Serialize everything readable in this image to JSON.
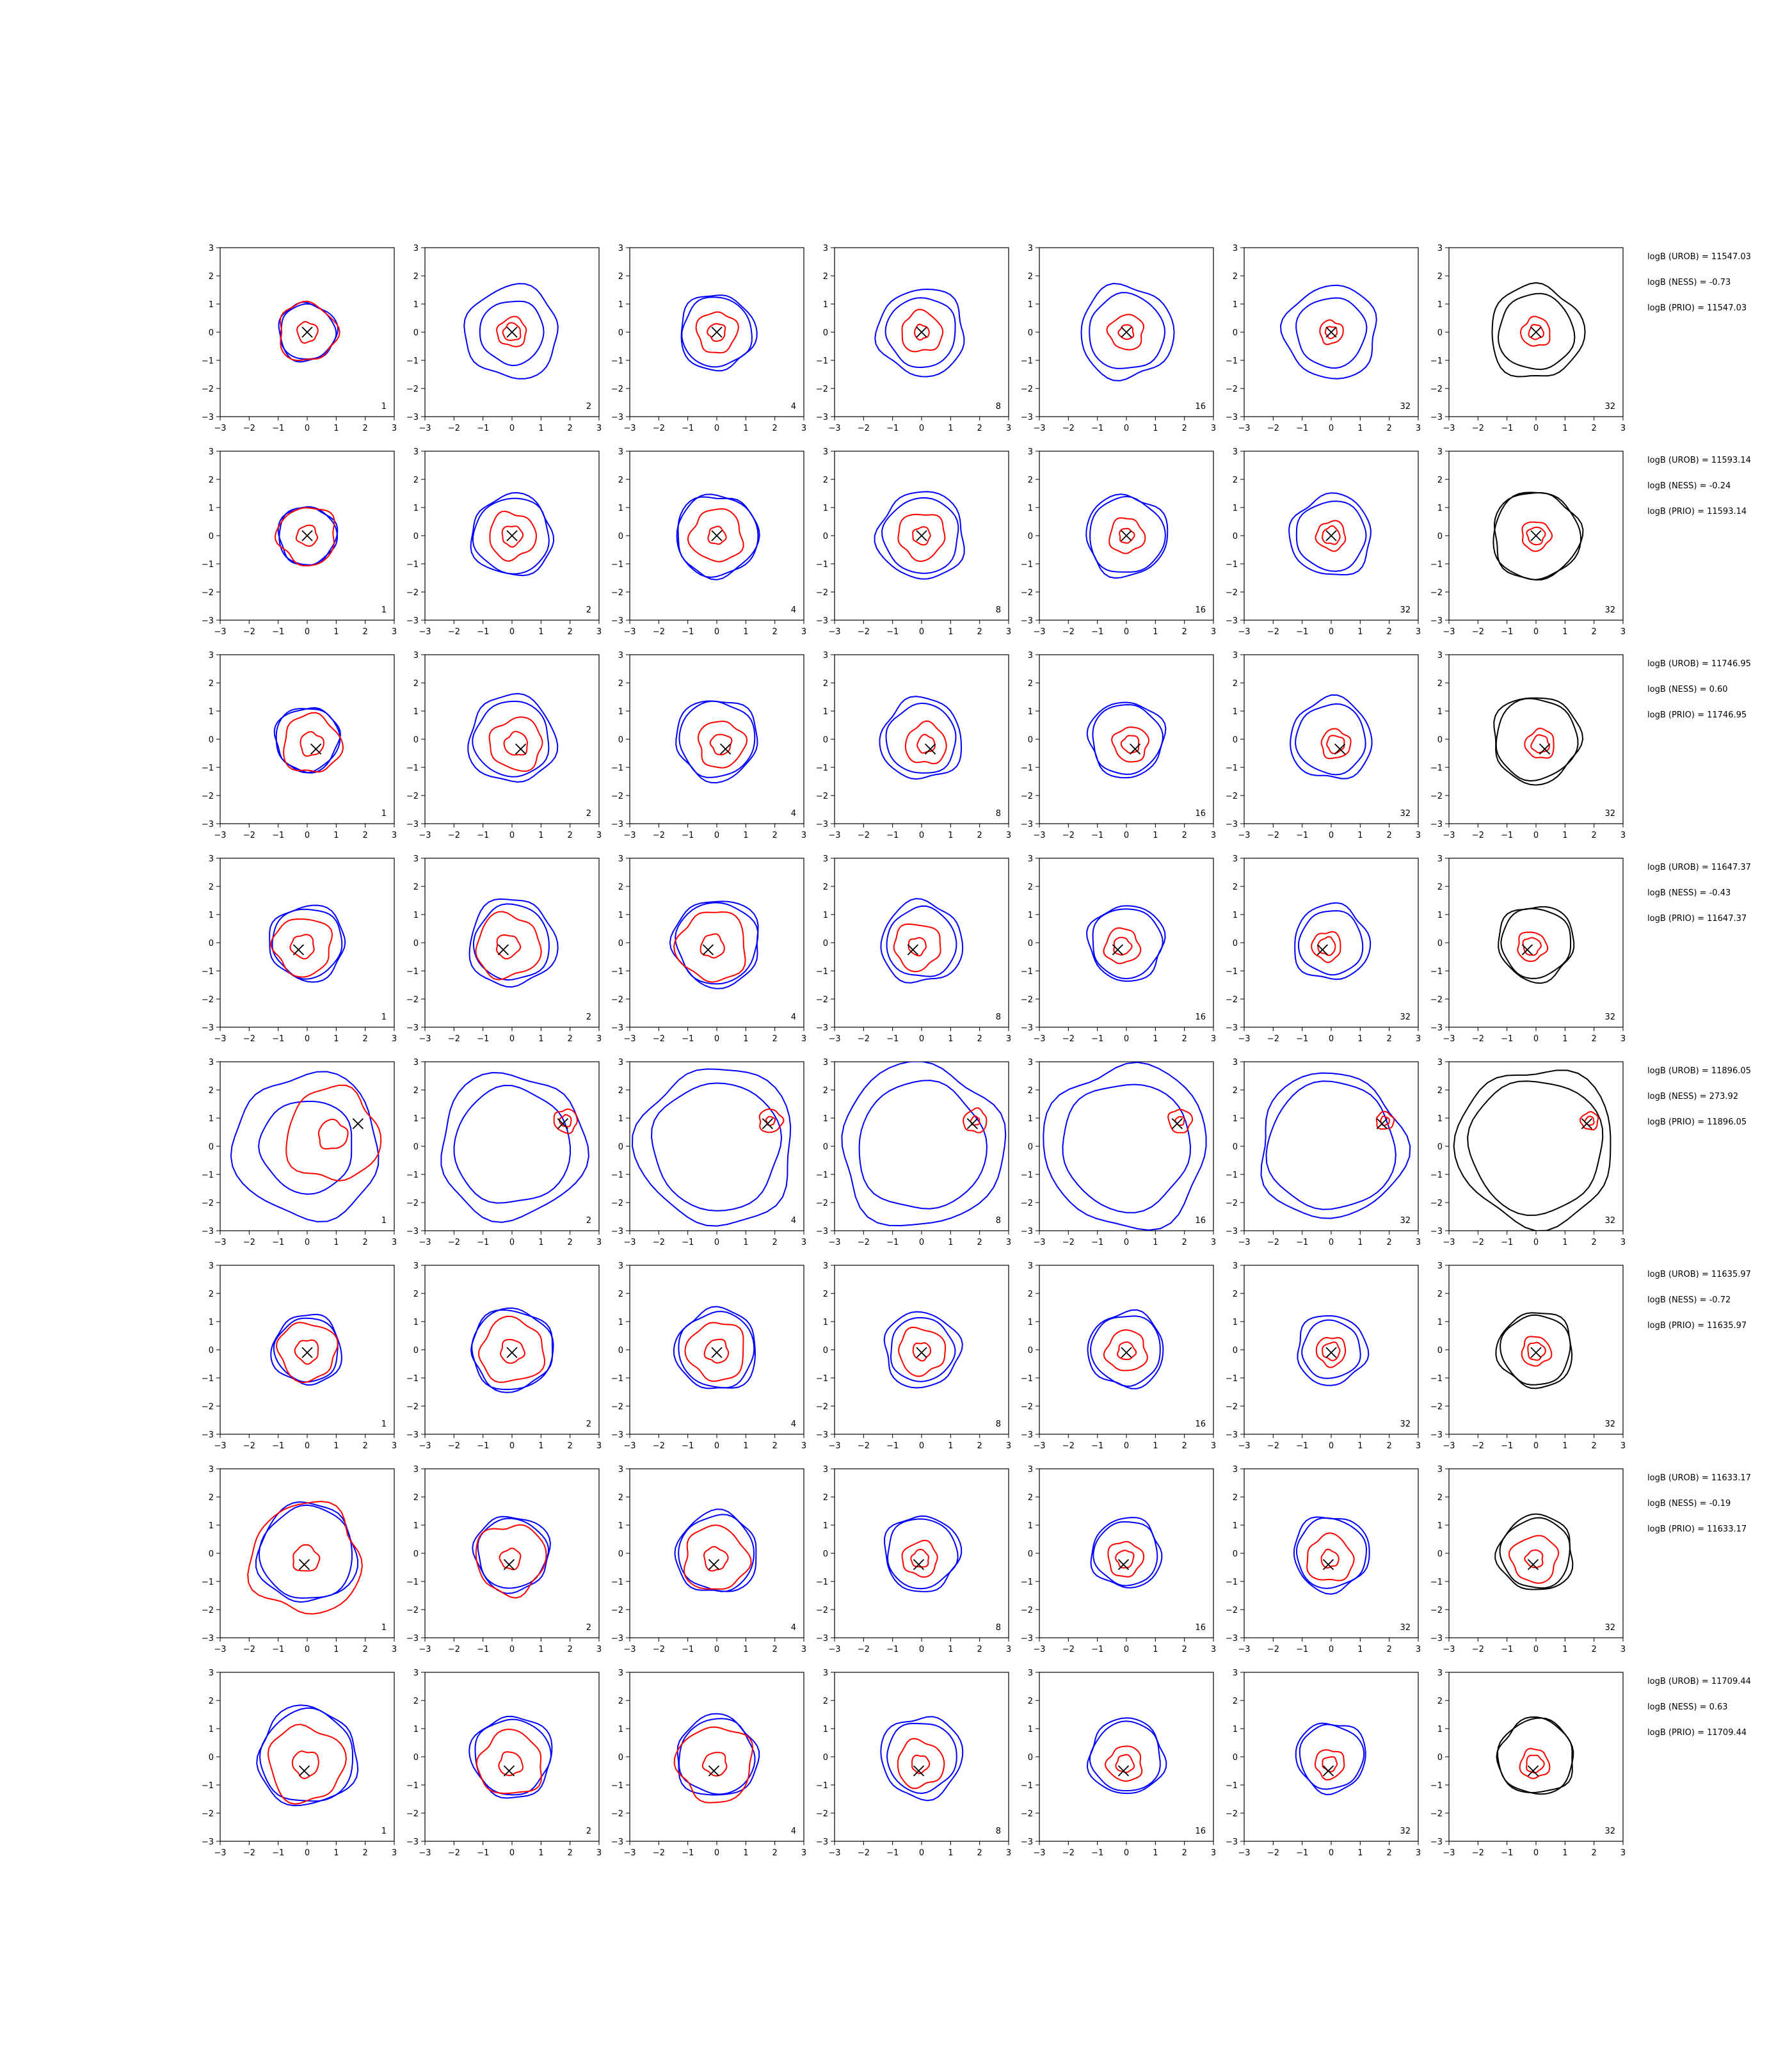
{
  "chart_data": {
    "type": "contour-grid",
    "xlim": [
      -3,
      3
    ],
    "ylim": [
      -3,
      3
    ],
    "ticks": [
      "−3",
      "−2",
      "−1",
      "0",
      "1",
      "2",
      "3"
    ],
    "column_labels": [
      "1",
      "2",
      "4",
      "8",
      "16",
      "32",
      "32"
    ],
    "colors": {
      "uniform": "#0000ff",
      "proposal": "#ff0000",
      "prior": "#000000",
      "marker": "#000000"
    },
    "rows": [
      {
        "cross": [
          0.0,
          0.0
        ],
        "blue_radii": [
          [
            0.95,
            1.0
          ],
          [
            1.1,
            1.6
          ],
          [
            1.2,
            1.3
          ],
          [
            1.2,
            1.5
          ],
          [
            1.3,
            1.6
          ],
          [
            1.2,
            1.6
          ],
          [
            1.3,
            1.6
          ]
        ],
        "red_radii": [
          [
            1.0,
            0.35
          ],
          [
            0.5,
            0.3
          ],
          [
            0.7,
            0.3
          ],
          [
            0.7,
            0.25
          ],
          [
            0.6,
            0.25
          ],
          [
            0.4,
            0.2
          ],
          [
            0.5,
            0.25
          ]
        ],
        "stats": [
          "logB (UROB) = 11547.03",
          "logB (NESS) = -0.73",
          "logB (PRIO) = 11547.03"
        ]
      },
      {
        "cross": [
          0.0,
          0.0
        ],
        "blue_radii": [
          [
            1.0,
            1.0
          ],
          [
            1.3,
            1.4
          ],
          [
            1.4,
            1.4
          ],
          [
            1.3,
            1.5
          ],
          [
            1.3,
            1.4
          ],
          [
            1.2,
            1.4
          ],
          [
            1.5,
            1.5
          ]
        ],
        "red_radii": [
          [
            1.0,
            0.35
          ],
          [
            0.8,
            0.35
          ],
          [
            0.9,
            0.3
          ],
          [
            0.8,
            0.3
          ],
          [
            0.6,
            0.25
          ],
          [
            0.5,
            0.3
          ],
          [
            0.5,
            0.3
          ]
        ],
        "stats": [
          "logB (UROB) = 11593.14",
          "logB (NESS) = -0.24",
          "logB (PRIO) = 11593.14"
        ]
      },
      {
        "cross": [
          0.3,
          -0.35
        ],
        "blue_radii": [
          [
            1.1,
            1.1
          ],
          [
            1.3,
            1.5
          ],
          [
            1.3,
            1.4
          ],
          [
            1.2,
            1.4
          ],
          [
            1.2,
            1.3
          ],
          [
            1.2,
            1.4
          ],
          [
            1.4,
            1.5
          ]
        ],
        "red_radii": [
          [
            1.0,
            0.4
          ],
          [
            0.9,
            0.4
          ],
          [
            0.8,
            0.35
          ],
          [
            0.7,
            0.3
          ],
          [
            0.6,
            0.3
          ],
          [
            0.5,
            0.3
          ],
          [
            0.5,
            0.3
          ]
        ],
        "stats": [
          "logB (UROB) = 11746.95",
          "logB (NESS) = 0.60",
          "logB (PRIO) = 11746.95"
        ]
      },
      {
        "cross": [
          -0.3,
          -0.25
        ],
        "blue_radii": [
          [
            1.2,
            1.3
          ],
          [
            1.3,
            1.5
          ],
          [
            1.4,
            1.5
          ],
          [
            1.2,
            1.4
          ],
          [
            1.2,
            1.3
          ],
          [
            1.1,
            1.3
          ],
          [
            1.2,
            1.3
          ]
        ],
        "red_radii": [
          [
            1.0,
            0.4
          ],
          [
            1.1,
            0.4
          ],
          [
            1.2,
            0.4
          ],
          [
            0.8,
            0.3
          ],
          [
            0.6,
            0.3
          ],
          [
            0.5,
            0.3
          ],
          [
            0.5,
            0.3
          ]
        ],
        "stats": [
          "logB (UROB) = 11647.37",
          "logB (NESS) = -0.43",
          "logB (PRIO) = 11647.37"
        ]
      },
      {
        "cross": [
          1.75,
          0.8
        ],
        "blue_radii": [
          [
            1.6,
            2.5
          ],
          [
            2.0,
            2.5
          ],
          [
            2.2,
            2.7
          ],
          [
            2.2,
            2.8
          ],
          [
            2.2,
            2.8
          ],
          [
            2.2,
            2.5
          ],
          [
            2.3,
            2.7
          ]
        ],
        "red_radii": [
          [
            1.6,
            0.5
          ],
          [
            0.4,
            0.2
          ],
          [
            0.4,
            0.15
          ],
          [
            0.4,
            0.15
          ],
          [
            0.4,
            0.15
          ],
          [
            0.3,
            0.15
          ],
          [
            0.3,
            0.15
          ]
        ],
        "stats": [
          "logB (UROB) = 11896.05",
          "logB (NESS) = 273.92",
          "logB (PRIO) = 11896.05"
        ]
      },
      {
        "cross": [
          0.0,
          -0.1
        ],
        "blue_radii": [
          [
            1.1,
            1.2
          ],
          [
            1.4,
            1.4
          ],
          [
            1.3,
            1.4
          ],
          [
            1.1,
            1.3
          ],
          [
            1.2,
            1.3
          ],
          [
            1.0,
            1.2
          ],
          [
            1.2,
            1.3
          ]
        ],
        "red_radii": [
          [
            1.0,
            0.4
          ],
          [
            1.1,
            0.4
          ],
          [
            1.0,
            0.4
          ],
          [
            0.8,
            0.3
          ],
          [
            0.7,
            0.3
          ],
          [
            0.5,
            0.3
          ],
          [
            0.5,
            0.3
          ]
        ],
        "stats": [
          "logB (UROB) = 11635.97",
          "logB (NESS) = -0.72",
          "logB (PRIO) = 11635.97"
        ]
      },
      {
        "cross": [
          -0.1,
          -0.4
        ],
        "blue_radii": [
          [
            1.6,
            1.7
          ],
          [
            1.2,
            1.3
          ],
          [
            1.3,
            1.4
          ],
          [
            1.2,
            1.3
          ],
          [
            1.1,
            1.2
          ],
          [
            1.2,
            1.3
          ],
          [
            1.2,
            1.3
          ]
        ],
        "red_radii": [
          [
            1.9,
            0.45
          ],
          [
            1.2,
            0.35
          ],
          [
            1.1,
            0.4
          ],
          [
            0.6,
            0.3
          ],
          [
            0.6,
            0.3
          ],
          [
            0.8,
            0.3
          ],
          [
            0.8,
            0.3
          ]
        ],
        "stats": [
          "logB (UROB) = 11633.17",
          "logB (NESS) = -0.19",
          "logB (PRIO) = 11633.17"
        ]
      },
      {
        "cross": [
          -0.1,
          -0.5
        ],
        "blue_radii": [
          [
            1.6,
            1.7
          ],
          [
            1.3,
            1.4
          ],
          [
            1.3,
            1.4
          ],
          [
            1.2,
            1.4
          ],
          [
            1.2,
            1.3
          ],
          [
            1.1,
            1.2
          ],
          [
            1.3,
            1.3
          ]
        ],
        "red_radii": [
          [
            1.3,
            0.45
          ],
          [
            1.1,
            0.4
          ],
          [
            1.3,
            0.4
          ],
          [
            0.8,
            0.3
          ],
          [
            0.6,
            0.3
          ],
          [
            0.5,
            0.25
          ],
          [
            0.5,
            0.3
          ]
        ],
        "stats": [
          "logB (UROB) = 11709.44",
          "logB (NESS) = 0.63",
          "logB (PRIO) = 11709.44"
        ]
      }
    ]
  }
}
